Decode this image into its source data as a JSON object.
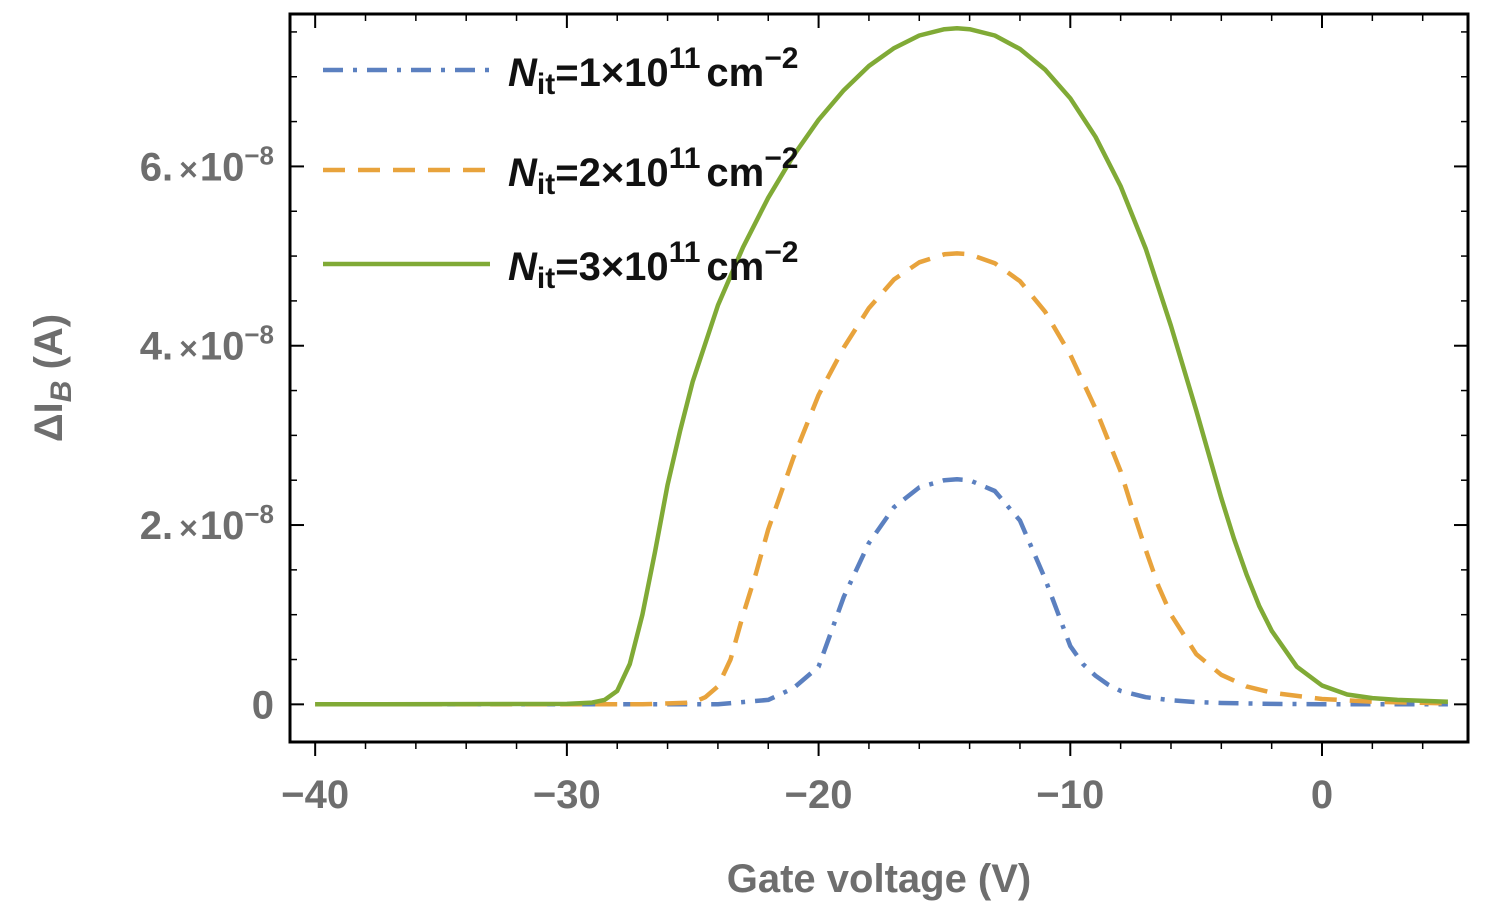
{
  "chart_data": {
    "type": "line",
    "title": "",
    "xlabel": "Gate voltage (V)",
    "ylabel": "ΔI_B (A)",
    "xlim": [
      -41,
      5.8
    ],
    "ylim": [
      -4.2e-09,
      7.7e-08
    ],
    "x_ticks": [
      -40,
      -30,
      -20,
      -10,
      0
    ],
    "x_tick_labels": [
      "−40",
      "−30",
      "−20",
      "−10",
      "0"
    ],
    "y_ticks": [
      0,
      2e-08,
      4e-08,
      6e-08
    ],
    "y_tick_labels": [
      {
        "mantissa": "0",
        "times": "",
        "base": "",
        "exp": ""
      },
      {
        "mantissa": "2.",
        "times": "×",
        "base": "10",
        "exp": "−8"
      },
      {
        "mantissa": "4.",
        "times": "×",
        "base": "10",
        "exp": "−8"
      },
      {
        "mantissa": "6.",
        "times": "×",
        "base": "10",
        "exp": "−8"
      }
    ],
    "legend_position": "top-left",
    "series": [
      {
        "name": "N_it=1×10^11 cm^-2",
        "legend": {
          "symbol": "N",
          "sub": "it",
          "eq": "=1×10",
          "exp1": "11",
          "unit": "cm",
          "exp2": "−2"
        },
        "style": "dashdot",
        "color": "#5b80c0",
        "x": [
          -40,
          -30,
          -28,
          -26,
          -24,
          -22,
          -21,
          -20,
          -19,
          -18,
          -17,
          -16,
          -15,
          -14.5,
          -14,
          -13,
          -12,
          -11,
          -10,
          -9.5,
          -9,
          -8.5,
          -8,
          -7,
          -6,
          -5,
          -4,
          -2,
          0,
          2,
          5
        ],
        "y": [
          0,
          0,
          0,
          1e-12,
          5e-12,
          5e-10,
          1.8e-09,
          4.2e-09,
          1.2e-08,
          1.8e-08,
          2.2e-08,
          2.42e-08,
          2.5e-08,
          2.51e-08,
          2.5e-08,
          2.38e-08,
          2.05e-08,
          1.4e-08,
          6.5e-09,
          4.5e-09,
          3.2e-09,
          2.2e-09,
          1.5e-09,
          8e-10,
          4.5e-10,
          2.5e-10,
          1.5e-10,
          5e-11,
          2e-11,
          1e-11,
          0
        ]
      },
      {
        "name": "N_it=2×10^11 cm^-2",
        "legend": {
          "symbol": "N",
          "sub": "it",
          "eq": "=2×10",
          "exp1": "11",
          "unit": "cm",
          "exp2": "−2"
        },
        "style": "dashed",
        "color": "#e8a33c",
        "x": [
          -40,
          -30,
          -27,
          -25,
          -24.5,
          -24,
          -23.5,
          -23,
          -22.5,
          -22,
          -21,
          -20,
          -19,
          -18,
          -17,
          -16,
          -15,
          -14.5,
          -14,
          -13,
          -12,
          -11,
          -10,
          -9,
          -8,
          -7.5,
          -7,
          -6.5,
          -6,
          -5,
          -4,
          -3,
          -2,
          0,
          2,
          5
        ],
        "y": [
          0,
          0,
          1e-11,
          2e-10,
          8e-10,
          2e-09,
          5e-09,
          1e-08,
          1.45e-08,
          1.95e-08,
          2.75e-08,
          3.45e-08,
          3.98e-08,
          4.42e-08,
          4.74e-08,
          4.93e-08,
          5.02e-08,
          5.03e-08,
          5.02e-08,
          4.92e-08,
          4.72e-08,
          4.38e-08,
          3.9e-08,
          3.3e-08,
          2.6e-08,
          2.15e-08,
          1.72e-08,
          1.32e-08,
          1e-08,
          5.6e-09,
          3.3e-09,
          2e-09,
          1.3e-09,
          6e-10,
          3e-10,
          1e-10
        ]
      },
      {
        "name": "N_it=3×10^11 cm^-2",
        "legend": {
          "symbol": "N",
          "sub": "it",
          "eq": "=3×10",
          "exp1": "11",
          "unit": "cm",
          "exp2": "−2"
        },
        "style": "solid",
        "color": "#80aa36",
        "x": [
          -40,
          -30,
          -29,
          -28.5,
          -28,
          -27.5,
          -27,
          -26.5,
          -26,
          -25.5,
          -25,
          -24,
          -23,
          -22,
          -21,
          -20,
          -19,
          -18,
          -17,
          -16,
          -15,
          -14.5,
          -14,
          -13,
          -12,
          -11,
          -10,
          -9,
          -8,
          -7,
          -6,
          -5,
          -4,
          -3.5,
          -3,
          -2.5,
          -2,
          -1,
          0,
          1,
          2,
          3,
          5
        ],
        "y": [
          0,
          5e-11,
          2e-10,
          5e-10,
          1.5e-09,
          4.5e-09,
          1e-08,
          1.7e-08,
          2.45e-08,
          3.05e-08,
          3.6e-08,
          4.45e-08,
          5.1e-08,
          5.65e-08,
          6.12e-08,
          6.52e-08,
          6.85e-08,
          7.12e-08,
          7.32e-08,
          7.46e-08,
          7.53e-08,
          7.54e-08,
          7.53e-08,
          7.46e-08,
          7.31e-08,
          7.08e-08,
          6.76e-08,
          6.33e-08,
          5.78e-08,
          5.08e-08,
          4.22e-08,
          3.28e-08,
          2.3e-08,
          1.85e-08,
          1.45e-08,
          1.1e-08,
          8.2e-09,
          4.2e-09,
          2.1e-09,
          1.1e-09,
          7e-10,
          5e-10,
          3e-10
        ]
      }
    ]
  }
}
